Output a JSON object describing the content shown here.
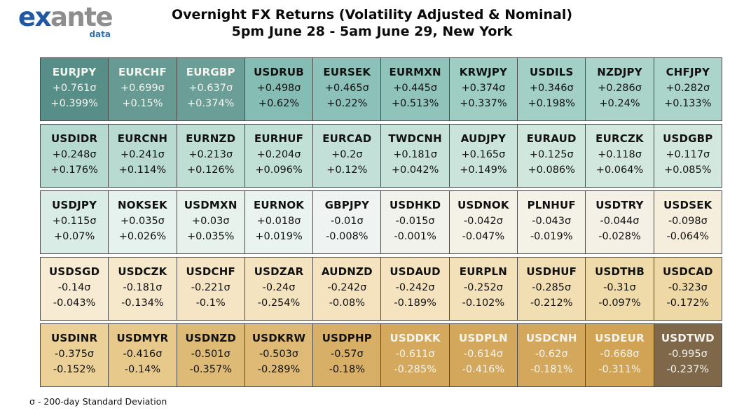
{
  "header": {
    "logo": {
      "part1": "ex",
      "part2": "ante",
      "part3": "data"
    },
    "title_line1": "Overnight FX Returns (Volatility Adjusted & Nominal)",
    "title_line2": "5pm June 28 - 5am June 29, New York"
  },
  "footnote": "σ - 200-day Standard Deviation",
  "colors": {
    "logo_blue": "#2157a4",
    "logo_gray": "#8e8e8e",
    "cell_border": "#4a4a4a",
    "text_dark": "#111111",
    "text_light": "#f5f4ef"
  },
  "chart_data": {
    "type": "heatmap",
    "title": "Overnight FX Returns (Volatility Adjusted & Nominal)",
    "subtitle": "5pm June 28 - 5am June 29, New York",
    "value_units": [
      "sigma (200-day standard deviations)",
      "percent"
    ],
    "rows": [
      [
        {
          "pair": "EURJPY",
          "sigma": "+0.761σ",
          "pct": "+0.399%",
          "bg": "#578e87",
          "fg": "light"
        },
        {
          "pair": "EURCHF",
          "sigma": "+0.699σ",
          "pct": "+0.15%",
          "bg": "#669a93",
          "fg": "light"
        },
        {
          "pair": "EURGBP",
          "sigma": "+0.637σ",
          "pct": "+0.374%",
          "bg": "#6b9e97",
          "fg": "light"
        },
        {
          "pair": "USDRUB",
          "sigma": "+0.498σ",
          "pct": "+0.62%",
          "bg": "#85bcb4",
          "fg": "dark"
        },
        {
          "pair": "EURSEK",
          "sigma": "+0.465σ",
          "pct": "+0.22%",
          "bg": "#8cc1b9",
          "fg": "dark"
        },
        {
          "pair": "EURMXN",
          "sigma": "+0.445σ",
          "pct": "+0.513%",
          "bg": "#90c4bb",
          "fg": "dark"
        },
        {
          "pair": "KRWJPY",
          "sigma": "+0.374σ",
          "pct": "+0.337%",
          "bg": "#9ecdc4",
          "fg": "dark"
        },
        {
          "pair": "USDILS",
          "sigma": "+0.346σ",
          "pct": "+0.198%",
          "bg": "#a2cfc6",
          "fg": "dark"
        },
        {
          "pair": "NZDJPY",
          "sigma": "+0.286σ",
          "pct": "+0.24%",
          "bg": "#aad3ca",
          "fg": "dark"
        },
        {
          "pair": "CHFJPY",
          "sigma": "+0.282σ",
          "pct": "+0.133%",
          "bg": "#abd4cb",
          "fg": "dark"
        }
      ],
      [
        {
          "pair": "USDIDR",
          "sigma": "+0.248σ",
          "pct": "+0.176%",
          "bg": "#b6d9d0",
          "fg": "dark"
        },
        {
          "pair": "EURCNH",
          "sigma": "+0.241σ",
          "pct": "+0.114%",
          "bg": "#b8dad1",
          "fg": "dark"
        },
        {
          "pair": "EURNZD",
          "sigma": "+0.213σ",
          "pct": "+0.126%",
          "bg": "#bfdfd5",
          "fg": "dark"
        },
        {
          "pair": "EURHUF",
          "sigma": "+0.204σ",
          "pct": "+0.096%",
          "bg": "#c1e0d6",
          "fg": "dark"
        },
        {
          "pair": "EURCAD",
          "sigma": "+0.2σ",
          "pct": "+0.12%",
          "bg": "#c2e0d7",
          "fg": "dark"
        },
        {
          "pair": "TWDCNH",
          "sigma": "+0.181σ",
          "pct": "+0.042%",
          "bg": "#c7e3d9",
          "fg": "dark"
        },
        {
          "pair": "AUDJPY",
          "sigma": "+0.165σ",
          "pct": "+0.149%",
          "bg": "#cae4db",
          "fg": "dark"
        },
        {
          "pair": "EURAUD",
          "sigma": "+0.125σ",
          "pct": "+0.086%",
          "bg": "#d0e7de",
          "fg": "dark"
        },
        {
          "pair": "EURCZK",
          "sigma": "+0.118σ",
          "pct": "+0.064%",
          "bg": "#d2e8df",
          "fg": "dark"
        },
        {
          "pair": "USDGBP",
          "sigma": "+0.117σ",
          "pct": "+0.085%",
          "bg": "#d2e8df",
          "fg": "dark"
        }
      ],
      [
        {
          "pair": "USDJPY",
          "sigma": "+0.115σ",
          "pct": "+0.07%",
          "bg": "#d9ece5",
          "fg": "dark"
        },
        {
          "pair": "NOKSEK",
          "sigma": "+0.035σ",
          "pct": "+0.026%",
          "bg": "#e6f2ed",
          "fg": "dark"
        },
        {
          "pair": "USDMXN",
          "sigma": "+0.03σ",
          "pct": "+0.035%",
          "bg": "#e7f2ed",
          "fg": "dark"
        },
        {
          "pair": "EURNOK",
          "sigma": "+0.018σ",
          "pct": "+0.019%",
          "bg": "#eaf3ef",
          "fg": "dark"
        },
        {
          "pair": "GBPJPY",
          "sigma": "-0.01σ",
          "pct": "-0.008%",
          "bg": "#eff3f1",
          "fg": "dark"
        },
        {
          "pair": "USDHKD",
          "sigma": "-0.015σ",
          "pct": "-0.001%",
          "bg": "#f2f2ec",
          "fg": "dark"
        },
        {
          "pair": "USDNOK",
          "sigma": "-0.042σ",
          "pct": "-0.047%",
          "bg": "#f4f1e7",
          "fg": "dark"
        },
        {
          "pair": "PLNHUF",
          "sigma": "-0.043σ",
          "pct": "-0.019%",
          "bg": "#f4f1e6",
          "fg": "dark"
        },
        {
          "pair": "USDTRY",
          "sigma": "-0.044σ",
          "pct": "-0.028%",
          "bg": "#f4f0e5",
          "fg": "dark"
        },
        {
          "pair": "USDSEK",
          "sigma": "-0.098σ",
          "pct": "-0.064%",
          "bg": "#f6eedd",
          "fg": "dark"
        }
      ],
      [
        {
          "pair": "USDSGD",
          "sigma": "-0.14σ",
          "pct": "-0.043%",
          "bg": "#f7ebd3",
          "fg": "dark"
        },
        {
          "pair": "USDCZK",
          "sigma": "-0.181σ",
          "pct": "-0.134%",
          "bg": "#f6e8cb",
          "fg": "dark"
        },
        {
          "pair": "USDCHF",
          "sigma": "-0.221σ",
          "pct": "-0.1%",
          "bg": "#f5e5c5",
          "fg": "dark"
        },
        {
          "pair": "USDZAR",
          "sigma": "-0.24σ",
          "pct": "-0.254%",
          "bg": "#f4e3bf",
          "fg": "dark"
        },
        {
          "pair": "AUDNZD",
          "sigma": "-0.242σ",
          "pct": "-0.08%",
          "bg": "#f4e3be",
          "fg": "dark"
        },
        {
          "pair": "USDAUD",
          "sigma": "-0.242σ",
          "pct": "-0.189%",
          "bg": "#f4e3be",
          "fg": "dark"
        },
        {
          "pair": "EURPLN",
          "sigma": "-0.252σ",
          "pct": "-0.102%",
          "bg": "#f3e1b9",
          "fg": "dark"
        },
        {
          "pair": "USDHUF",
          "sigma": "-0.285σ",
          "pct": "-0.212%",
          "bg": "#f1deb2",
          "fg": "dark"
        },
        {
          "pair": "USDTHB",
          "sigma": "-0.31σ",
          "pct": "-0.097%",
          "bg": "#efdaaa",
          "fg": "dark"
        },
        {
          "pair": "USDCAD",
          "sigma": "-0.323σ",
          "pct": "-0.172%",
          "bg": "#eed8a6",
          "fg": "dark"
        }
      ],
      [
        {
          "pair": "USDINR",
          "sigma": "-0.375σ",
          "pct": "-0.152%",
          "bg": "#ebd198",
          "fg": "dark"
        },
        {
          "pair": "USDMYR",
          "sigma": "-0.416σ",
          "pct": "-0.14%",
          "bg": "#e7c98c",
          "fg": "dark"
        },
        {
          "pair": "USDNZD",
          "sigma": "-0.501σ",
          "pct": "-0.357%",
          "bg": "#deba77",
          "fg": "dark"
        },
        {
          "pair": "USDKRW",
          "sigma": "-0.503σ",
          "pct": "-0.289%",
          "bg": "#deba76",
          "fg": "dark"
        },
        {
          "pair": "USDPHP",
          "sigma": "-0.57σ",
          "pct": "-0.18%",
          "bg": "#d8af66",
          "fg": "dark"
        },
        {
          "pair": "USDDKK",
          "sigma": "-0.611σ",
          "pct": "-0.285%",
          "bg": "#d4a95e",
          "fg": "light"
        },
        {
          "pair": "USDPLN",
          "sigma": "-0.614σ",
          "pct": "-0.416%",
          "bg": "#d3a85d",
          "fg": "light"
        },
        {
          "pair": "USDCNH",
          "sigma": "-0.62σ",
          "pct": "-0.181%",
          "bg": "#d3a85c",
          "fg": "light"
        },
        {
          "pair": "USDEUR",
          "sigma": "-0.668σ",
          "pct": "-0.311%",
          "bg": "#d0a355",
          "fg": "light"
        },
        {
          "pair": "USDTWD",
          "sigma": "-0.995σ",
          "pct": "-0.237%",
          "bg": "#7f684a",
          "fg": "light"
        }
      ]
    ]
  }
}
